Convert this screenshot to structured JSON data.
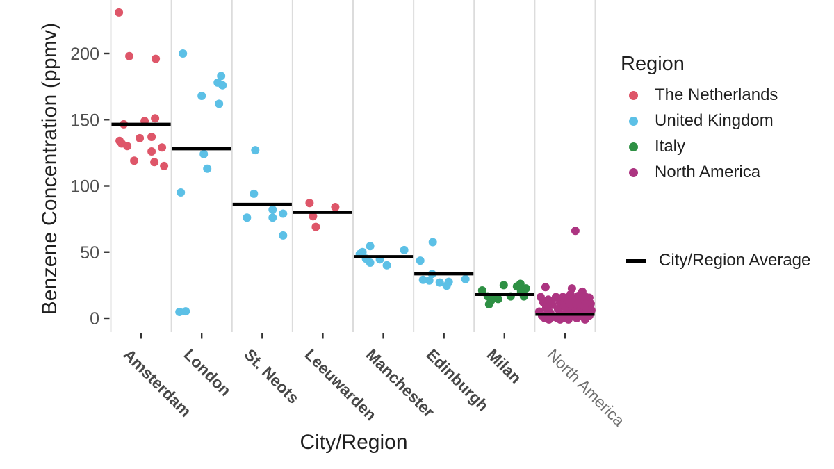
{
  "figure": {
    "y_axis_title": "Benzene Concentration (ppmv)",
    "x_axis_title": "City/Region",
    "legend_region_title": "Region",
    "legend_average_label": "City/Region Average"
  },
  "colors": {
    "background": "#ffffff",
    "grid": "#dcdcdc",
    "average_line": "#000000",
    "tick": "#333333",
    "tick_label": "#4f4f4f",
    "axis_title": "#1f1f1f",
    "city_label": "#474747",
    "city_label_light": "#6f6f6f"
  },
  "chart_data": {
    "type": "scatter",
    "title": "",
    "xlabel": "City/Region",
    "ylabel": "Benzene Concentration (ppmv)",
    "ylim": [
      -10,
      240
    ],
    "y_ticks": [
      0,
      50,
      100,
      150,
      200
    ],
    "grid": "vertical-column-separators-only",
    "legend_position": "right",
    "point_unit": "ppmv",
    "jitter_note": "points are [x_jitter_px_from_column_center, value_ppmv]",
    "regions": [
      {
        "name": "The Netherlands",
        "color": "#de5669"
      },
      {
        "name": "United Kingdom",
        "color": "#5cc0e6"
      },
      {
        "name": "Italy",
        "color": "#2e9044"
      },
      {
        "name": "North America",
        "color": "#ac3481"
      }
    ],
    "average_marker": {
      "label": "City/Region Average",
      "color": "#000000"
    },
    "groups": [
      {
        "city": "Amsterdam",
        "region": "The Netherlands",
        "average": 146.5,
        "points": [
          [
            -32,
            231
          ],
          [
            -17,
            198
          ],
          [
            21,
            196
          ],
          [
            20,
            151
          ],
          [
            5,
            149
          ],
          [
            -25,
            146.5
          ],
          [
            15,
            137
          ],
          [
            -2,
            136
          ],
          [
            -31,
            134
          ],
          [
            -28,
            132
          ],
          [
            -20,
            130
          ],
          [
            30,
            129
          ],
          [
            15,
            126
          ],
          [
            -10,
            119
          ],
          [
            19,
            118
          ],
          [
            33,
            115
          ]
        ]
      },
      {
        "city": "London",
        "region": "United Kingdom",
        "average": 128,
        "points": [
          [
            -27,
            200
          ],
          [
            28,
            183
          ],
          [
            23,
            178
          ],
          [
            30,
            176
          ],
          [
            0,
            168
          ],
          [
            25,
            162
          ],
          [
            3,
            124
          ],
          [
            8,
            113
          ],
          [
            -30,
            95
          ],
          [
            -32,
            4.7
          ],
          [
            -23,
            5.2
          ]
        ]
      },
      {
        "city": "St. Neots",
        "region": "United Kingdom",
        "average": 86,
        "points": [
          [
            -10,
            127
          ],
          [
            -12,
            94
          ],
          [
            15,
            82
          ],
          [
            30,
            79
          ],
          [
            -22,
            76
          ],
          [
            15,
            76
          ],
          [
            30,
            62.5
          ]
        ]
      },
      {
        "city": "Leeuwarden",
        "region": "The Netherlands",
        "average": 80,
        "points": [
          [
            -19,
            87
          ],
          [
            18,
            84
          ],
          [
            -14,
            77
          ],
          [
            -10,
            69
          ]
        ]
      },
      {
        "city": "Manchester",
        "region": "United Kingdom",
        "average": 46.5,
        "points": [
          [
            -30,
            50
          ],
          [
            -19,
            54.5
          ],
          [
            -34,
            48.5
          ],
          [
            -25,
            45
          ],
          [
            -19,
            42
          ],
          [
            -5,
            44.5
          ],
          [
            5,
            40
          ],
          [
            30,
            51.5
          ]
        ]
      },
      {
        "city": "Edinburgh",
        "region": "United Kingdom",
        "average": 33.5,
        "points": [
          [
            -16,
            57.5
          ],
          [
            -34,
            43.5
          ],
          [
            -17,
            33.5
          ],
          [
            -30,
            29
          ],
          [
            -21,
            28.5
          ],
          [
            -6,
            27
          ],
          [
            4,
            24.5
          ],
          [
            7,
            27.5
          ],
          [
            31,
            29.5
          ]
        ]
      },
      {
        "city": "Milan",
        "region": "Italy",
        "average": 18,
        "points": [
          [
            -32,
            21
          ],
          [
            -24,
            16.5
          ],
          [
            -22,
            10.5
          ],
          [
            -19,
            13.5
          ],
          [
            -14,
            15.5
          ],
          [
            -9,
            14.5
          ],
          [
            -1,
            25
          ],
          [
            9,
            16.5
          ],
          [
            18,
            24
          ],
          [
            23,
            26
          ],
          [
            24,
            20
          ],
          [
            28,
            16.5
          ],
          [
            31,
            22.5
          ]
        ]
      },
      {
        "city": "North America",
        "region": "North America",
        "average": 3,
        "label_style": "light",
        "points": [
          [
            15,
            66
          ],
          [
            -28,
            23.5
          ],
          [
            10,
            22.5
          ],
          [
            25,
            20
          ],
          [
            35,
            15.5
          ],
          [
            -35,
            16
          ],
          [
            -31,
            12
          ],
          [
            -27,
            8
          ],
          [
            -24,
            14
          ],
          [
            -21,
            4
          ],
          [
            -18,
            10
          ],
          [
            -15,
            1
          ],
          [
            -13,
            16
          ],
          [
            -10,
            7
          ],
          [
            -7,
            12
          ],
          [
            -4,
            3
          ],
          [
            -1,
            9
          ],
          [
            1,
            0
          ],
          [
            3,
            14
          ],
          [
            5,
            6
          ],
          [
            7,
            11
          ],
          [
            9,
            2
          ],
          [
            11,
            8
          ],
          [
            13,
            15
          ],
          [
            15,
            5
          ],
          [
            17,
            10
          ],
          [
            19,
            1
          ],
          [
            21,
            12
          ],
          [
            23,
            7
          ],
          [
            25,
            3
          ],
          [
            27,
            9
          ],
          [
            29,
            13
          ],
          [
            31,
            5
          ],
          [
            33,
            8
          ],
          [
            35,
            2
          ],
          [
            37,
            11
          ],
          [
            -37,
            5
          ],
          [
            -33,
            2
          ],
          [
            -29,
            0
          ],
          [
            -25,
            6
          ],
          [
            -19,
            13
          ],
          [
            -11,
            0
          ],
          [
            -3,
            16
          ],
          [
            8,
            18
          ],
          [
            20,
            17
          ],
          [
            30,
            16
          ],
          [
            38,
            6
          ],
          [
            -23,
            -1
          ],
          [
            -7,
            -1
          ],
          [
            5,
            -1
          ],
          [
            17,
            0
          ],
          [
            29,
            -1
          ]
        ]
      }
    ]
  }
}
